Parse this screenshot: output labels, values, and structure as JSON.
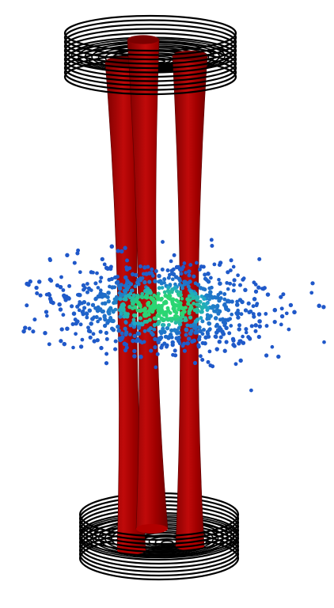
{
  "scene": {
    "background": "#ffffff",
    "colors": {
      "coil": "#000000",
      "beam_dark": "#7a0000",
      "beam_mid": "#b00000",
      "beam_light": "#c80f0f",
      "atom_low": "#1f57c9",
      "atom_mid": "#1fa3c8",
      "atom_high": "#2bd673"
    },
    "atom_count": 900
  }
}
